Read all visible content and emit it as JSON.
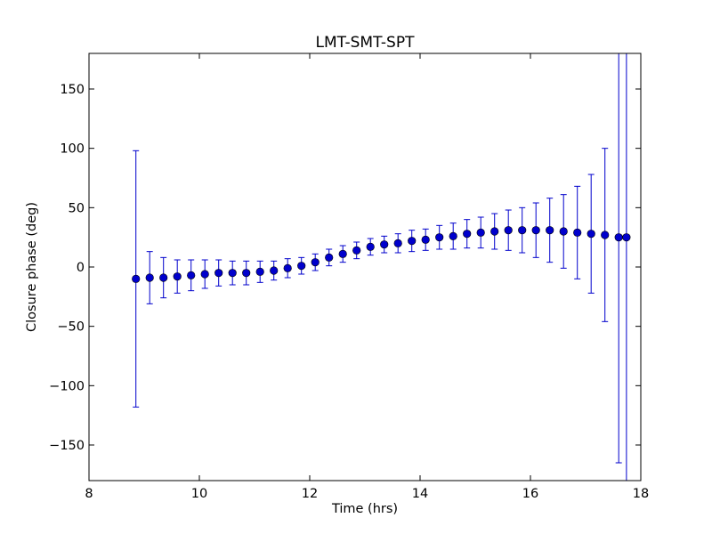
{
  "chart_data": {
    "type": "scatter",
    "title": "LMT-SMT-SPT",
    "xlabel": "Time (hrs)",
    "ylabel": "Closure phase (deg)",
    "xlim": [
      8,
      18
    ],
    "ylim": [
      -180,
      180
    ],
    "xticks": [
      8,
      10,
      12,
      14,
      16,
      18
    ],
    "xtick_labels": [
      "8",
      "10",
      "12",
      "14",
      "16",
      "18"
    ],
    "yticks": [
      -150,
      -100,
      -50,
      0,
      50,
      100,
      150
    ],
    "ytick_labels": [
      "−150",
      "−100",
      "−50",
      "0",
      "50",
      "100",
      "150"
    ],
    "grid": false,
    "legend": "none",
    "marker_color": "#0000cc",
    "errorbar_color": "#0000cc",
    "series": [
      {
        "x": [
          8.85,
          9.1,
          9.35,
          9.6,
          9.85,
          10.1,
          10.35,
          10.6,
          10.85,
          11.1,
          11.35,
          11.6,
          11.85,
          12.1,
          12.35,
          12.6,
          12.85,
          13.1,
          13.35,
          13.6,
          13.85,
          14.1,
          14.35,
          14.6,
          14.85,
          15.1,
          15.35,
          15.6,
          15.85,
          16.1,
          16.35,
          16.6,
          16.85,
          17.1,
          17.35,
          17.6,
          17.74
        ],
        "y": [
          -10,
          -9,
          -9,
          -8,
          -7,
          -6,
          -5,
          -5,
          -5,
          -4,
          -3,
          -1,
          1,
          4,
          8,
          11,
          14,
          17,
          19,
          20,
          22,
          23,
          25,
          26,
          28,
          29,
          30,
          31,
          31,
          31,
          31,
          30,
          29,
          28,
          27,
          25,
          25
        ],
        "err": [
          108,
          22,
          17,
          14,
          13,
          12,
          11,
          10,
          10,
          9,
          8,
          8,
          7,
          7,
          7,
          7,
          7,
          7,
          7,
          8,
          9,
          9,
          10,
          11,
          12,
          13,
          15,
          17,
          19,
          23,
          27,
          31,
          39,
          50,
          73,
          190,
          205
        ]
      }
    ]
  }
}
